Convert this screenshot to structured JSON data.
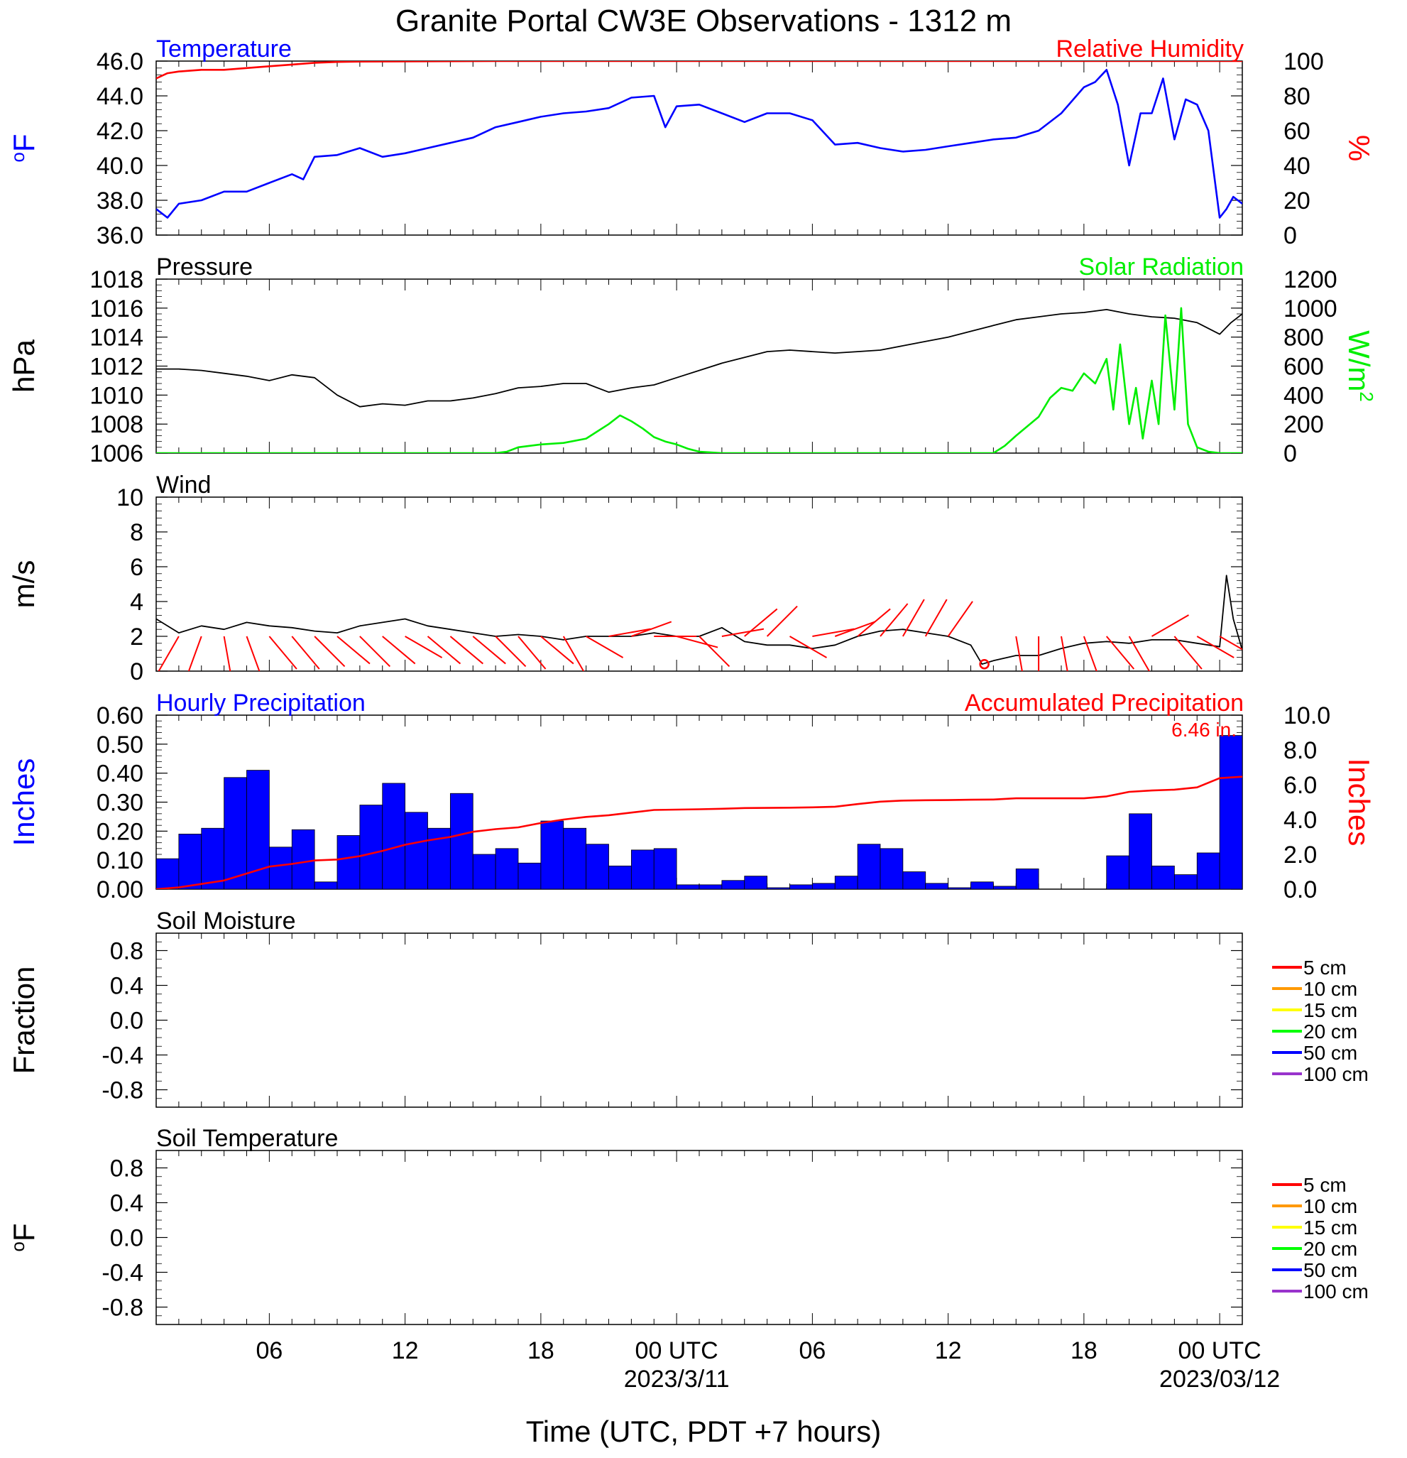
{
  "title": "Granite Portal CW3E Observations - 1312 m",
  "xaxis": {
    "ticks": [
      {
        "hour": 6,
        "label": "06"
      },
      {
        "hour": 12,
        "label": "12"
      },
      {
        "hour": 18,
        "label": "18"
      },
      {
        "hour": 24,
        "label": "00 UTC",
        "sub": "2023/3/11"
      },
      {
        "hour": 30,
        "label": "06"
      },
      {
        "hour": 36,
        "label": "12"
      },
      {
        "hour": 42,
        "label": "18"
      },
      {
        "hour": 48,
        "label": "00 UTC",
        "sub": "2023/03/12"
      }
    ],
    "xlabel": "Time (UTC, PDT +7 hours)",
    "range_hours": [
      1,
      49
    ]
  },
  "chart_data": [
    {
      "type": "line",
      "panel": "temperature_humidity",
      "left_title": "Temperature",
      "right_title": "Relative Humidity",
      "ylabel_left": "oF",
      "ylabel_right": "%",
      "ylim_left": [
        36,
        46
      ],
      "ylim_right": [
        0,
        100
      ],
      "yticks_left": [
        "36.0",
        "38.0",
        "40.0",
        "42.0",
        "44.0",
        "46.0"
      ],
      "yticks_right": [
        "0",
        "20",
        "40",
        "60",
        "80",
        "100"
      ],
      "series": [
        {
          "name": "Temperature",
          "axis": "left",
          "color": "#0000ff",
          "x": [
            1,
            1.5,
            2,
            3,
            4,
            5,
            6,
            7,
            7.5,
            8,
            9,
            10,
            11,
            12,
            13,
            14,
            15,
            16,
            17,
            18,
            19,
            20,
            21,
            22,
            23,
            23.5,
            24,
            25,
            26,
            27,
            28,
            29,
            30,
            31,
            32,
            33,
            34,
            35,
            36,
            37,
            38,
            39,
            40,
            41,
            42,
            42.5,
            43,
            43.5,
            44,
            44.5,
            45,
            45.5,
            46,
            46.5,
            47,
            47.5,
            48,
            48.3,
            48.6,
            49
          ],
          "y": [
            37.5,
            37.0,
            37.8,
            38.0,
            38.5,
            38.5,
            39.0,
            39.5,
            39.2,
            40.5,
            40.6,
            41.0,
            40.5,
            40.7,
            41.0,
            41.3,
            41.6,
            42.2,
            42.5,
            42.8,
            43.0,
            43.1,
            43.3,
            43.9,
            44.0,
            42.2,
            43.4,
            43.5,
            43.0,
            42.5,
            43.0,
            43.0,
            42.6,
            41.2,
            41.3,
            41.0,
            40.8,
            40.9,
            41.1,
            41.3,
            41.5,
            41.6,
            42.0,
            43.0,
            44.5,
            44.8,
            45.5,
            43.5,
            40.0,
            43.0,
            43.0,
            45.0,
            41.5,
            43.8,
            43.5,
            42.0,
            37.0,
            37.5,
            38.2,
            37.8
          ]
        },
        {
          "name": "Relative Humidity",
          "axis": "right",
          "color": "#ff0000",
          "x": [
            1,
            1.5,
            2,
            3,
            4,
            5,
            6,
            7,
            8,
            9,
            10,
            12,
            14,
            16,
            20,
            24,
            30,
            36,
            42,
            46,
            49
          ],
          "y": [
            90,
            93,
            94,
            95,
            95,
            96,
            97,
            98,
            99,
            99.5,
            99.7,
            99.8,
            99.9,
            100,
            100,
            100,
            100,
            100,
            100,
            100,
            100
          ]
        }
      ]
    },
    {
      "type": "line",
      "panel": "pressure_solar",
      "left_title": "Pressure",
      "right_title": "Solar Radiation",
      "ylabel_left": "hPa",
      "ylabel_right": "W/m2",
      "ylim_left": [
        1006,
        1018
      ],
      "ylim_right": [
        0,
        1200
      ],
      "yticks_left": [
        "1006",
        "1008",
        "1010",
        "1012",
        "1014",
        "1016",
        "1018"
      ],
      "yticks_right": [
        "0",
        "200",
        "400",
        "600",
        "800",
        "1000",
        "1200"
      ],
      "series": [
        {
          "name": "Pressure",
          "axis": "left",
          "color": "#000000",
          "x": [
            1,
            2,
            3,
            4,
            5,
            6,
            7,
            8,
            9,
            10,
            11,
            12,
            13,
            14,
            15,
            16,
            17,
            18,
            19,
            20,
            21,
            22,
            23,
            24,
            25,
            26,
            27,
            28,
            29,
            30,
            31,
            32,
            33,
            34,
            35,
            36,
            37,
            38,
            39,
            40,
            41,
            42,
            43,
            44,
            45,
            46,
            47,
            48,
            48.5,
            49
          ],
          "y": [
            1011.8,
            1011.8,
            1011.7,
            1011.5,
            1011.3,
            1011.0,
            1011.4,
            1011.2,
            1010.0,
            1009.2,
            1009.4,
            1009.3,
            1009.6,
            1009.6,
            1009.8,
            1010.1,
            1010.5,
            1010.6,
            1010.8,
            1010.8,
            1010.2,
            1010.5,
            1010.7,
            1011.2,
            1011.7,
            1012.2,
            1012.6,
            1013.0,
            1013.1,
            1013.0,
            1012.9,
            1013.0,
            1013.1,
            1013.4,
            1013.7,
            1014.0,
            1014.4,
            1014.8,
            1015.2,
            1015.4,
            1015.6,
            1015.7,
            1015.9,
            1015.6,
            1015.4,
            1015.3,
            1015.0,
            1014.2,
            1015.0,
            1015.6
          ]
        },
        {
          "name": "Solar Radiation",
          "axis": "right",
          "color": "#00ee00",
          "x": [
            1,
            16,
            16.5,
            17,
            18,
            19,
            20,
            20.5,
            21,
            21.5,
            22,
            22.5,
            23,
            23.5,
            24,
            24.5,
            25,
            26,
            38,
            38.5,
            39,
            40,
            40.5,
            41,
            41.5,
            42,
            42.5,
            43,
            43.3,
            43.6,
            44,
            44.3,
            44.6,
            45,
            45.3,
            45.6,
            46,
            46.3,
            46.6,
            47,
            47.5,
            48,
            49
          ],
          "y": [
            0,
            0,
            10,
            40,
            60,
            70,
            100,
            150,
            200,
            260,
            220,
            170,
            110,
            80,
            60,
            30,
            10,
            0,
            0,
            50,
            120,
            250,
            380,
            450,
            430,
            550,
            480,
            650,
            300,
            750,
            200,
            450,
            100,
            500,
            200,
            950,
            300,
            1000,
            200,
            40,
            10,
            0,
            0
          ]
        }
      ]
    },
    {
      "type": "line",
      "panel": "wind",
      "left_title": "Wind",
      "ylabel_left": "m/s",
      "ylim_left": [
        0,
        10
      ],
      "yticks_left": [
        "0",
        "2",
        "4",
        "6",
        "8",
        "10"
      ],
      "series": [
        {
          "name": "Wind",
          "axis": "left",
          "color": "#000000",
          "x": [
            1,
            2,
            3,
            4,
            5,
            6,
            7,
            8,
            9,
            10,
            11,
            12,
            13,
            14,
            15,
            16,
            17,
            18,
            19,
            20,
            21,
            22,
            23,
            24,
            25,
            26,
            27,
            28,
            29,
            30,
            31,
            32,
            33,
            34,
            35,
            36,
            37,
            37.5,
            38,
            39,
            40,
            41,
            42,
            43,
            44,
            45,
            46,
            47,
            48,
            48.3,
            48.6,
            49
          ],
          "y": [
            3.0,
            2.2,
            2.6,
            2.4,
            2.8,
            2.6,
            2.5,
            2.3,
            2.2,
            2.6,
            2.8,
            3.0,
            2.6,
            2.4,
            2.2,
            2.0,
            2.1,
            2.0,
            1.8,
            2.0,
            2.0,
            2.0,
            2.2,
            2.0,
            2.0,
            2.5,
            1.7,
            1.5,
            1.5,
            1.3,
            1.5,
            2.0,
            2.3,
            2.4,
            2.2,
            2.0,
            1.5,
            0.4,
            0.6,
            0.9,
            0.9,
            1.3,
            1.6,
            1.7,
            1.6,
            1.8,
            1.8,
            1.6,
            1.4,
            5.5,
            3.0,
            1.2
          ]
        }
      ],
      "barbs": [
        {
          "hour": 2.0,
          "dir_deg": 330
        },
        {
          "hour": 3.0,
          "dir_deg": 340
        },
        {
          "hour": 4.0,
          "dir_deg": 10
        },
        {
          "hour": 5.0,
          "dir_deg": 20
        },
        {
          "hour": 6.0,
          "dir_deg": 40
        },
        {
          "hour": 7.0,
          "dir_deg": 40
        },
        {
          "hour": 8.0,
          "dir_deg": 45
        },
        {
          "hour": 9.0,
          "dir_deg": 50
        },
        {
          "hour": 10.0,
          "dir_deg": 45
        },
        {
          "hour": 11.0,
          "dir_deg": 50
        },
        {
          "hour": 12.0,
          "dir_deg": 60
        },
        {
          "hour": 13.0,
          "dir_deg": 50
        },
        {
          "hour": 14.0,
          "dir_deg": 50
        },
        {
          "hour": 15.0,
          "dir_deg": 50
        },
        {
          "hour": 16.0,
          "dir_deg": 45
        },
        {
          "hour": 17.0,
          "dir_deg": 40
        },
        {
          "hour": 18.0,
          "dir_deg": 50
        },
        {
          "hour": 19.0,
          "dir_deg": 30
        },
        {
          "hour": 20.0,
          "dir_deg": 60
        },
        {
          "hour": 21.0,
          "dir_deg": 100
        },
        {
          "hour": 22.0,
          "dir_deg": 110
        },
        {
          "hour": 23.0,
          "dir_deg": 90
        },
        {
          "hour": 24.0,
          "dir_deg": 75
        },
        {
          "hour": 25.0,
          "dir_deg": 45
        },
        {
          "hour": 26.0,
          "dir_deg": 100
        },
        {
          "hour": 27.0,
          "dir_deg": 130
        },
        {
          "hour": 28.0,
          "dir_deg": 135
        },
        {
          "hour": 29.0,
          "dir_deg": 60
        },
        {
          "hour": 30.0,
          "dir_deg": 100
        },
        {
          "hour": 31.0,
          "dir_deg": 110
        },
        {
          "hour": 32.0,
          "dir_deg": 130
        },
        {
          "hour": 33.0,
          "dir_deg": 140
        },
        {
          "hour": 34.0,
          "dir_deg": 150
        },
        {
          "hour": 35.0,
          "dir_deg": 150
        },
        {
          "hour": 36.0,
          "dir_deg": 145
        },
        {
          "hour": 39.0,
          "dir_deg": 10
        },
        {
          "hour": 40.0,
          "dir_deg": 0
        },
        {
          "hour": 41.0,
          "dir_deg": 10
        },
        {
          "hour": 42.0,
          "dir_deg": 20
        },
        {
          "hour": 43.0,
          "dir_deg": 40
        },
        {
          "hour": 44.0,
          "dir_deg": 30
        },
        {
          "hour": 45.0,
          "dir_deg": 120
        },
        {
          "hour": 46.0,
          "dir_deg": 40
        },
        {
          "hour": 47.0,
          "dir_deg": 60
        },
        {
          "hour": 48.0,
          "dir_deg": 60
        }
      ],
      "calm_markers": [
        {
          "hour": 37.6
        }
      ]
    },
    {
      "type": "bar",
      "panel": "precipitation",
      "left_title": "Hourly Precipitation",
      "right_title": "Accumulated Precipitation",
      "annotation": "6.46 in.",
      "ylabel_left": "Inches",
      "ylabel_right": "Inches",
      "ylim_left": [
        0,
        0.6
      ],
      "ylim_right": [
        0,
        10
      ],
      "yticks_left": [
        "0.00",
        "0.10",
        "0.20",
        "0.30",
        "0.40",
        "0.50",
        "0.60"
      ],
      "yticks_right": [
        "0.0",
        "2.0",
        "4.0",
        "6.0",
        "8.0",
        "10.0"
      ],
      "bars": {
        "name": "Hourly Precipitation",
        "color": "#0000ff",
        "hour_start": [
          1,
          2,
          3,
          4,
          5,
          6,
          7,
          8,
          9,
          10,
          11,
          12,
          13,
          14,
          15,
          16,
          17,
          18,
          19,
          20,
          21,
          22,
          23,
          24,
          25,
          26,
          27,
          28,
          29,
          30,
          31,
          32,
          33,
          34,
          35,
          36,
          37,
          38,
          39,
          40,
          41,
          42,
          43,
          44,
          45,
          46,
          47,
          48
        ],
        "values": [
          0.105,
          0.19,
          0.21,
          0.385,
          0.41,
          0.145,
          0.205,
          0.025,
          0.185,
          0.29,
          0.365,
          0.265,
          0.21,
          0.33,
          0.12,
          0.14,
          0.09,
          0.235,
          0.21,
          0.155,
          0.08,
          0.135,
          0.14,
          0.015,
          0.015,
          0.03,
          0.045,
          0.005,
          0.015,
          0.02,
          0.045,
          0.155,
          0.14,
          0.06,
          0.02,
          0.005,
          0.025,
          0.01,
          0.07,
          0,
          0,
          0,
          0.115,
          0.26,
          0.08,
          0.05,
          0.125,
          0.53
        ]
      },
      "series": [
        {
          "name": "Accumulated Precipitation",
          "axis": "right",
          "color": "#ff0000",
          "x": [
            1,
            2,
            3,
            4,
            5,
            6,
            7,
            8,
            9,
            10,
            11,
            12,
            13,
            14,
            15,
            16,
            17,
            18,
            19,
            20,
            21,
            22,
            23,
            24,
            25,
            26,
            27,
            28,
            29,
            30,
            31,
            32,
            33,
            34,
            35,
            36,
            37,
            38,
            39,
            40,
            41,
            42,
            43,
            44,
            45,
            46,
            47,
            48,
            49
          ],
          "y": [
            0,
            0.1,
            0.3,
            0.5,
            0.9,
            1.3,
            1.45,
            1.65,
            1.7,
            1.9,
            2.2,
            2.55,
            2.8,
            3.0,
            3.3,
            3.45,
            3.55,
            3.8,
            4.0,
            4.15,
            4.25,
            4.4,
            4.55,
            4.57,
            4.59,
            4.62,
            4.66,
            4.67,
            4.68,
            4.7,
            4.74,
            4.89,
            5.03,
            5.09,
            5.11,
            5.12,
            5.14,
            5.15,
            5.22,
            5.22,
            5.22,
            5.22,
            5.33,
            5.59,
            5.67,
            5.72,
            5.85,
            6.38,
            6.46
          ]
        }
      ]
    },
    {
      "type": "line",
      "panel": "soil_moisture",
      "left_title": "Soil Moisture",
      "ylabel_left": "Fraction",
      "ylim_left": [
        -1,
        1
      ],
      "yticks_left": [
        "-0.8",
        "-0.4",
        "0.0",
        "0.4",
        "0.8"
      ],
      "legend": [
        {
          "name": "5 cm",
          "color": "#ff0000"
        },
        {
          "name": "10 cm",
          "color": "#ff9900"
        },
        {
          "name": "15 cm",
          "color": "#ffff00"
        },
        {
          "name": "20 cm",
          "color": "#00ff00"
        },
        {
          "name": "50 cm",
          "color": "#0000ff"
        },
        {
          "name": "100 cm",
          "color": "#9933cc"
        }
      ],
      "series": []
    },
    {
      "type": "line",
      "panel": "soil_temperature",
      "left_title": "Soil Temperature",
      "ylabel_left": "oF",
      "ylim_left": [
        -1,
        1
      ],
      "yticks_left": [
        "-0.8",
        "-0.4",
        "0.0",
        "0.4",
        "0.8"
      ],
      "legend": [
        {
          "name": "5 cm",
          "color": "#ff0000"
        },
        {
          "name": "10 cm",
          "color": "#ff9900"
        },
        {
          "name": "15 cm",
          "color": "#ffff00"
        },
        {
          "name": "20 cm",
          "color": "#00ff00"
        },
        {
          "name": "50 cm",
          "color": "#0000ff"
        },
        {
          "name": "100 cm",
          "color": "#9933cc"
        }
      ],
      "series": []
    }
  ]
}
